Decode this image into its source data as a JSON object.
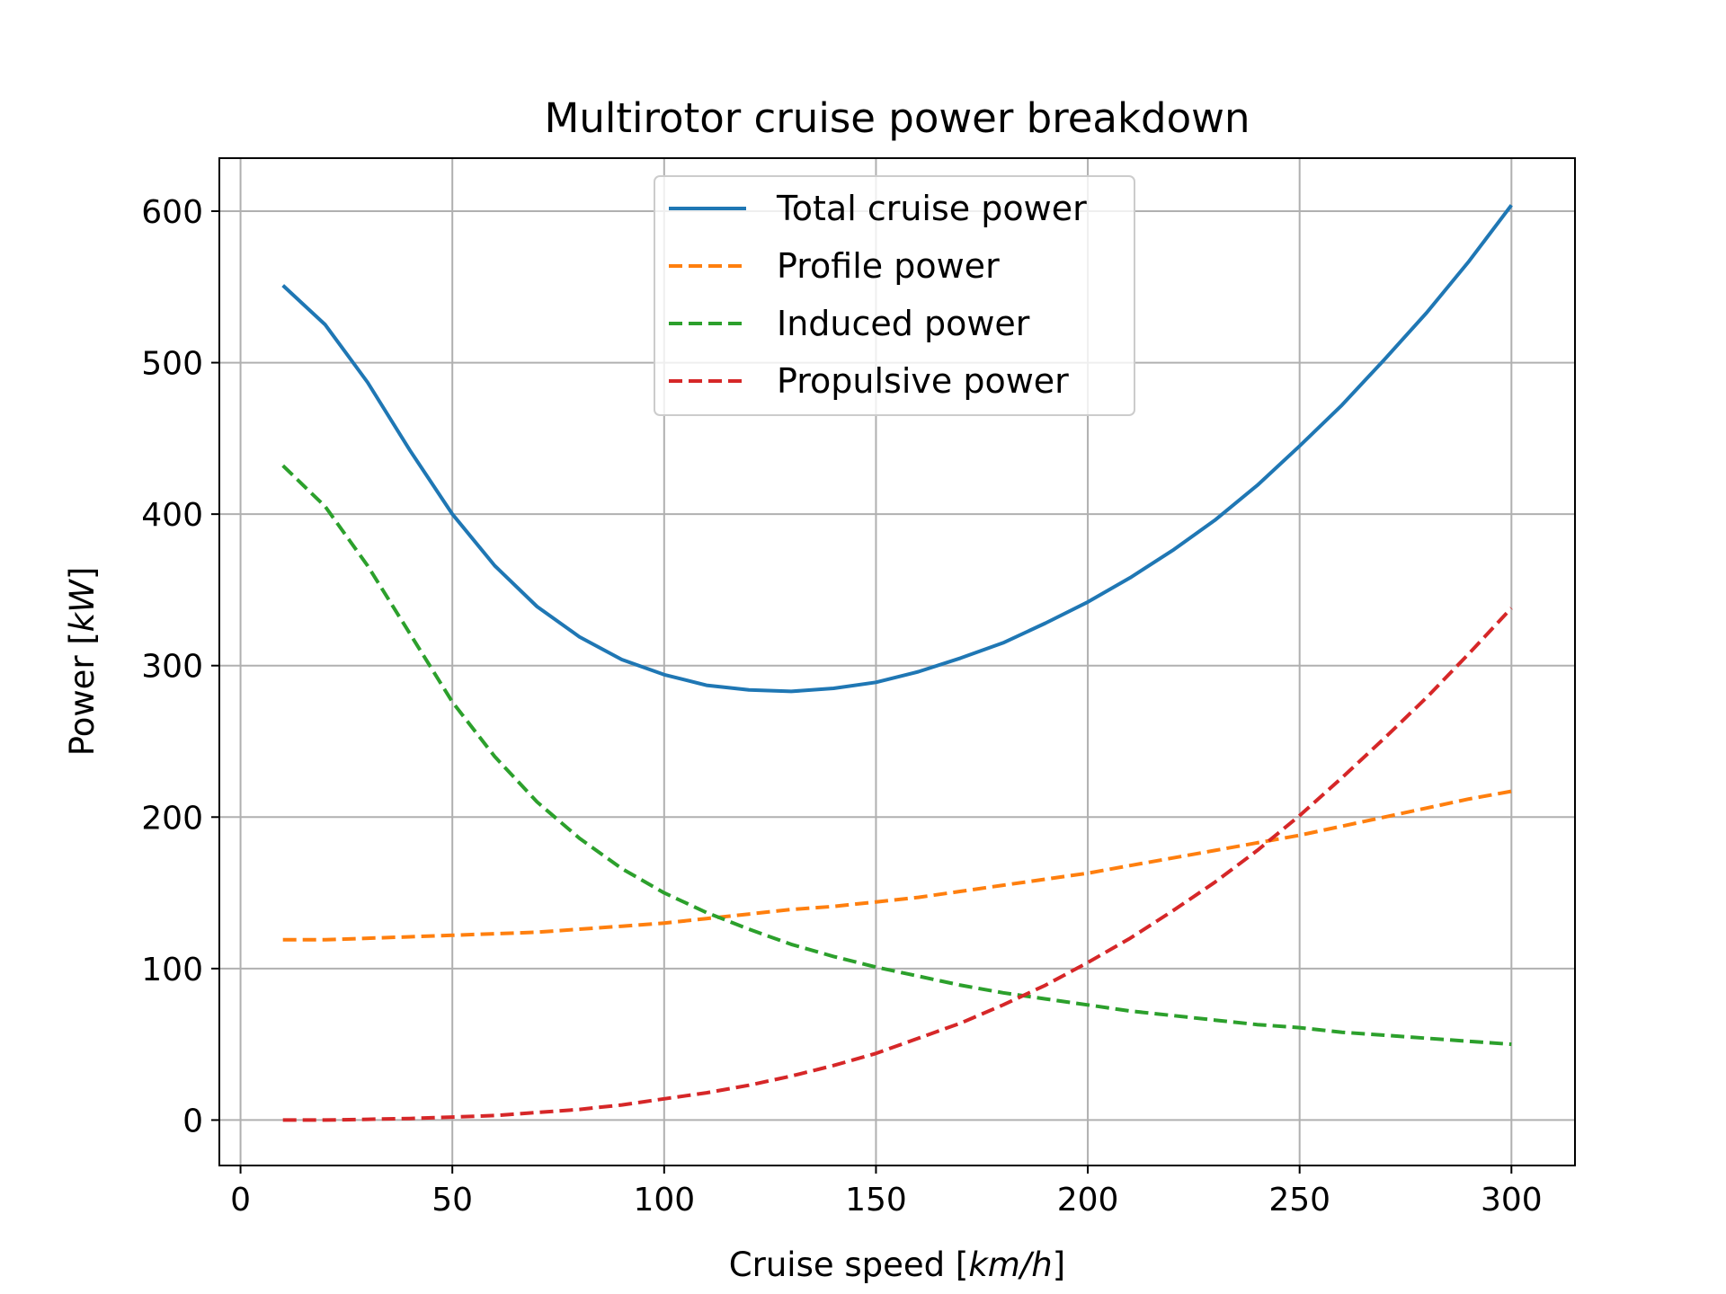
{
  "chart_data": {
    "type": "line",
    "title": "Multirotor cruise power breakdown",
    "xlabel": "Cruise speed [km/h]",
    "xlabel_plain": "Cruise speed [",
    "xlabel_unit": "km/h",
    "xlabel_close": "]",
    "ylabel": "Power [kW]",
    "ylabel_plain": "Power [",
    "ylabel_unit": "kW",
    "ylabel_close": "]",
    "xlim": [
      -5,
      315
    ],
    "ylim": [
      -30,
      635
    ],
    "xticks": [
      0,
      50,
      100,
      150,
      200,
      250,
      300
    ],
    "yticks": [
      0,
      100,
      200,
      300,
      400,
      500,
      600
    ],
    "grid": true,
    "legend_position": "upper-center",
    "x": [
      10,
      20,
      30,
      40,
      50,
      60,
      70,
      80,
      90,
      100,
      110,
      120,
      130,
      140,
      150,
      160,
      170,
      180,
      190,
      200,
      210,
      220,
      230,
      240,
      250,
      260,
      270,
      280,
      290,
      300
    ],
    "series": [
      {
        "name": "Total cruise power",
        "color": "#1f77b4",
        "style": "solid",
        "values": [
          551,
          525,
          487,
          442,
          400,
          366,
          339,
          319,
          304,
          294,
          287,
          284,
          283,
          285,
          289,
          296,
          305,
          315,
          328,
          342,
          358,
          376,
          396,
          419,
          445,
          472,
          502,
          533,
          567,
          604
        ]
      },
      {
        "name": "Profile power",
        "color": "#ff7f0e",
        "style": "dashed",
        "values": [
          119,
          119,
          120,
          121,
          122,
          123,
          124,
          126,
          128,
          130,
          133,
          136,
          139,
          141,
          144,
          147,
          151,
          155,
          159,
          163,
          168,
          173,
          178,
          183,
          188,
          194,
          200,
          206,
          212,
          217
        ]
      },
      {
        "name": "Induced power",
        "color": "#2ca02c",
        "style": "dashed",
        "values": [
          432,
          405,
          366,
          321,
          276,
          240,
          210,
          186,
          166,
          150,
          137,
          126,
          116,
          108,
          101,
          95,
          89,
          84,
          80,
          76,
          72,
          69,
          66,
          63,
          61,
          58,
          56,
          54,
          52,
          50
        ]
      },
      {
        "name": "Propulsive power",
        "color": "#d62728",
        "style": "dashed",
        "values": [
          0,
          0,
          0.5,
          1,
          2,
          3,
          5,
          7,
          10,
          14,
          18,
          23,
          29,
          36,
          44,
          54,
          64,
          76,
          89,
          104,
          120,
          138,
          157,
          178,
          201,
          226,
          252,
          279,
          308,
          338
        ]
      }
    ]
  }
}
